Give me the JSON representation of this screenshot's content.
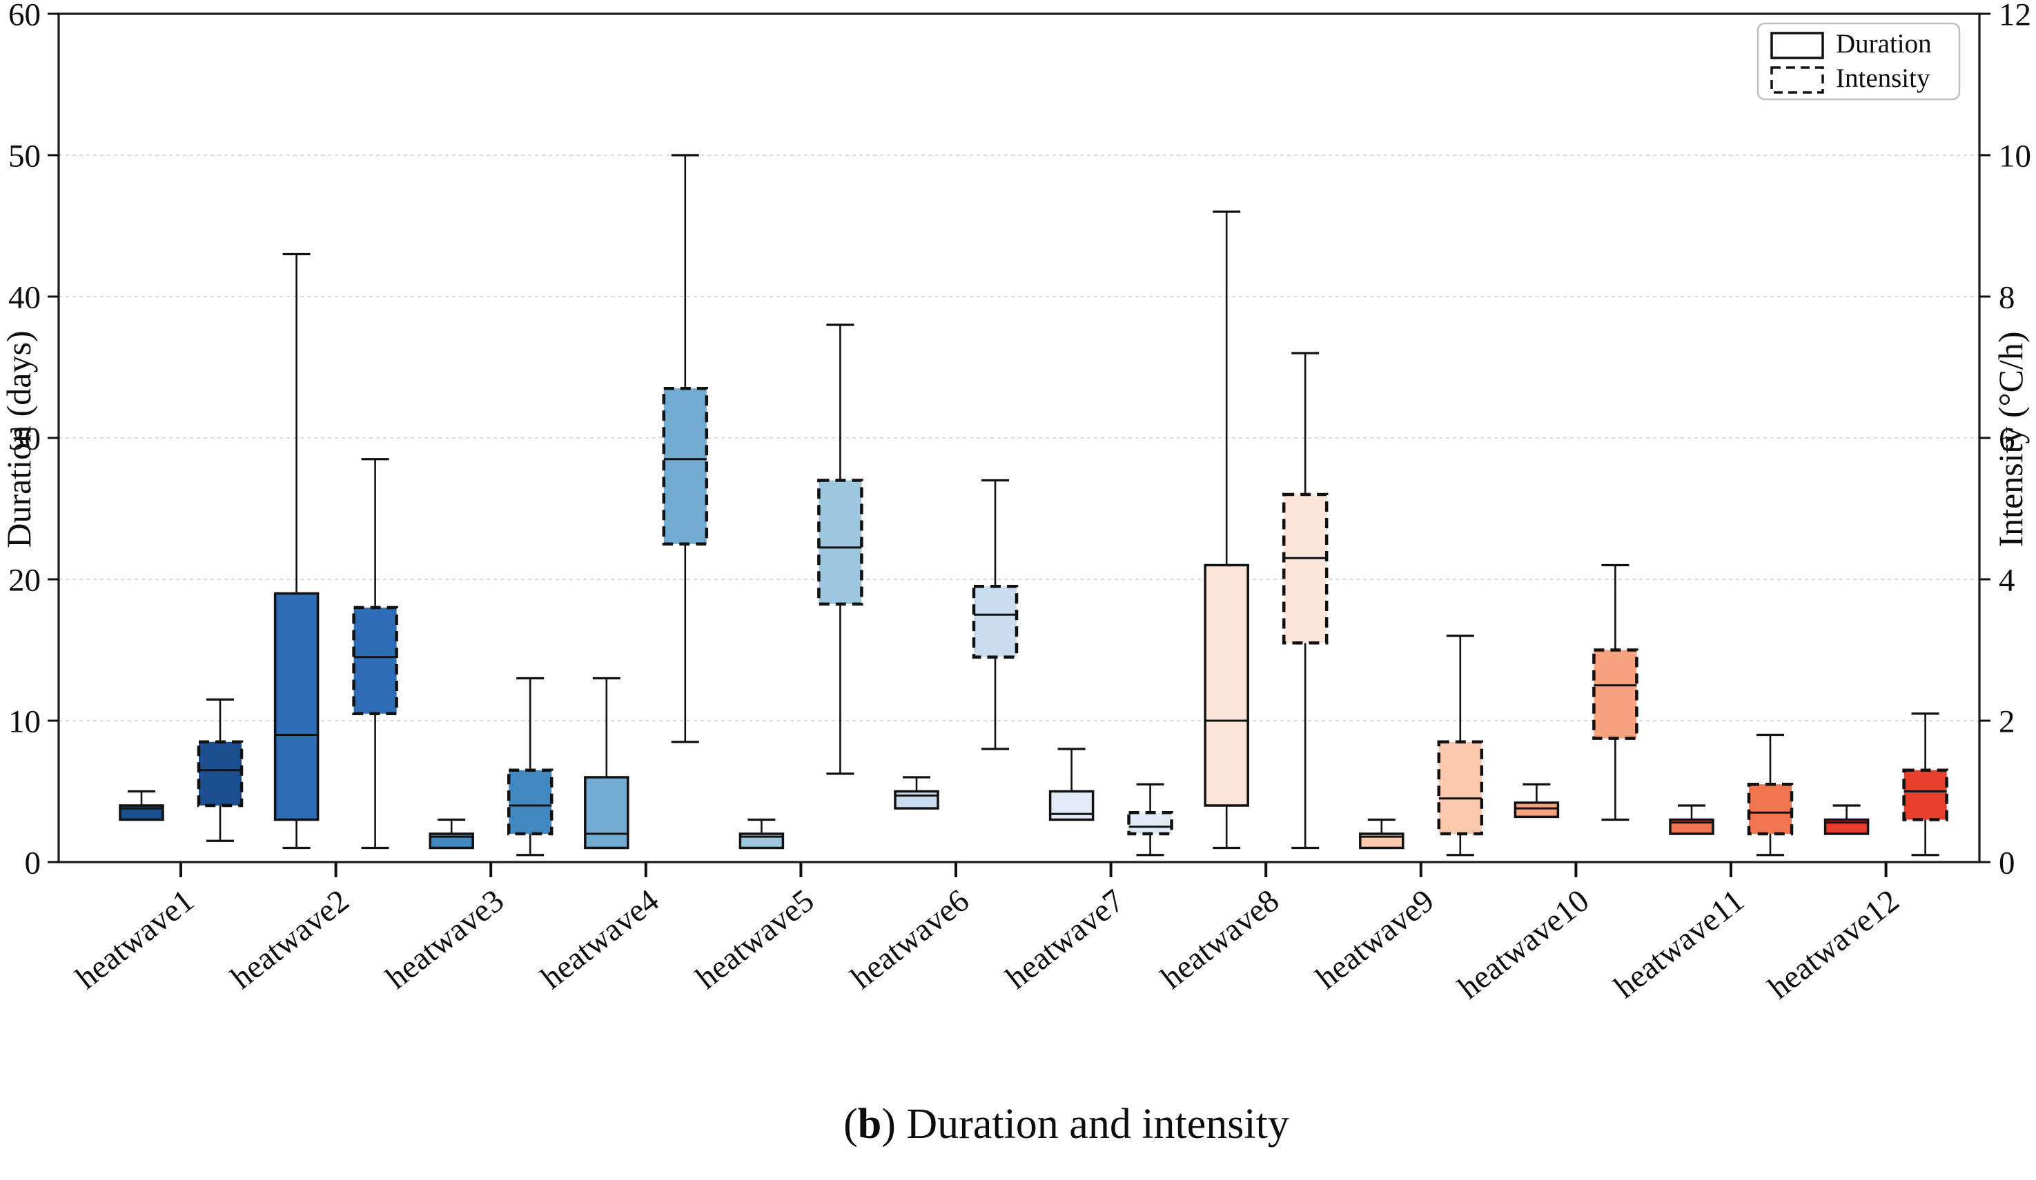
{
  "caption": {
    "prefix": "(",
    "bold": "b",
    "suffix": ") Duration and intensity"
  },
  "chart_data": {
    "type": "boxplot",
    "title": "(b) Duration and intensity",
    "categories": [
      "heatwave1",
      "heatwave2",
      "heatwave3",
      "heatwave4",
      "heatwave5",
      "heatwave6",
      "heatwave7",
      "heatwave8",
      "heatwave9",
      "heatwave10",
      "heatwave11",
      "heatwave12"
    ],
    "left_axis": {
      "label": "Duration (days)",
      "ticks": [
        0,
        10,
        20,
        30,
        40,
        50,
        60
      ],
      "range": [
        0,
        60
      ]
    },
    "right_axis": {
      "label": "Intensity (°C/h)",
      "ticks": [
        0,
        2,
        4,
        6,
        8,
        10,
        12
      ],
      "range": [
        0,
        12
      ]
    },
    "grid": {
      "horizontal": true,
      "style": "dashed",
      "at_left_ticks": [
        10,
        20,
        30,
        40,
        50
      ]
    },
    "legend": {
      "position": "top-right",
      "items": [
        "Duration",
        "Intensity"
      ]
    },
    "group_colors": [
      "#1b4f8f",
      "#2e6db5",
      "#4289c1",
      "#72acd3",
      "#9dc7de",
      "#c9ddee",
      "#e1eaf5",
      "#fbe5d8",
      "#fbc9ad",
      "#f8a37f",
      "#f2764f",
      "#e53e2d"
    ],
    "series": [
      {
        "name": "Duration",
        "axis": "left",
        "unit": "days",
        "line_style": "solid",
        "boxes": [
          {
            "whislo": 3,
            "q1": 3,
            "med": 3.8,
            "q3": 4,
            "whishi": 5
          },
          {
            "whislo": 1,
            "q1": 3,
            "med": 9,
            "q3": 19,
            "whishi": 43
          },
          {
            "whislo": 1,
            "q1": 1,
            "med": 1.8,
            "q3": 2,
            "whishi": 3
          },
          {
            "whislo": 1,
            "q1": 1,
            "med": 2,
            "q3": 6,
            "whishi": 13
          },
          {
            "whislo": 1,
            "q1": 1,
            "med": 1.8,
            "q3": 2,
            "whishi": 3
          },
          {
            "whislo": 3.8,
            "q1": 3.8,
            "med": 4.7,
            "q3": 5,
            "whishi": 6
          },
          {
            "whislo": 3,
            "q1": 3,
            "med": 3.4,
            "q3": 5,
            "whishi": 8
          },
          {
            "whislo": 1,
            "q1": 4,
            "med": 10,
            "q3": 21,
            "whishi": 46
          },
          {
            "whislo": 1,
            "q1": 1,
            "med": 1.8,
            "q3": 2,
            "whishi": 3
          },
          {
            "whislo": 3.2,
            "q1": 3.2,
            "med": 3.8,
            "q3": 4.2,
            "whishi": 5.5
          },
          {
            "whislo": 2,
            "q1": 2,
            "med": 2.8,
            "q3": 3,
            "whishi": 4
          },
          {
            "whislo": 2,
            "q1": 2,
            "med": 2.8,
            "q3": 3,
            "whishi": 4
          }
        ]
      },
      {
        "name": "Intensity",
        "axis": "right",
        "unit": "°C/h",
        "line_style": "dashed",
        "boxes": [
          {
            "whislo": 0.3,
            "q1": 0.8,
            "med": 1.3,
            "q3": 1.7,
            "whishi": 2.3
          },
          {
            "whislo": 0.2,
            "q1": 2.1,
            "med": 2.9,
            "q3": 3.6,
            "whishi": 5.7
          },
          {
            "whislo": 0.1,
            "q1": 0.4,
            "med": 0.8,
            "q3": 1.3,
            "whishi": 2.6
          },
          {
            "whislo": 1.7,
            "q1": 4.5,
            "med": 5.7,
            "q3": 6.7,
            "whishi": 10
          },
          {
            "whislo": 1.25,
            "q1": 3.65,
            "med": 4.45,
            "q3": 5.4,
            "whishi": 7.6
          },
          {
            "whislo": 1.6,
            "q1": 2.9,
            "med": 3.5,
            "q3": 3.9,
            "whishi": 5.4
          },
          {
            "whislo": 0.1,
            "q1": 0.4,
            "med": 0.5,
            "q3": 0.7,
            "whishi": 1.1
          },
          {
            "whislo": 0.2,
            "q1": 3.1,
            "med": 4.3,
            "q3": 5.2,
            "whishi": 7.2
          },
          {
            "whislo": 0.1,
            "q1": 0.4,
            "med": 0.9,
            "q3": 1.7,
            "whishi": 3.2
          },
          {
            "whislo": 0.6,
            "q1": 1.75,
            "med": 2.5,
            "q3": 3,
            "whishi": 4.2
          },
          {
            "whislo": 0.1,
            "q1": 0.4,
            "med": 0.7,
            "q3": 1.1,
            "whishi": 1.8
          },
          {
            "whislo": 0.1,
            "q1": 0.6,
            "med": 1,
            "q3": 1.3,
            "whishi": 2.1
          }
        ]
      }
    ]
  }
}
